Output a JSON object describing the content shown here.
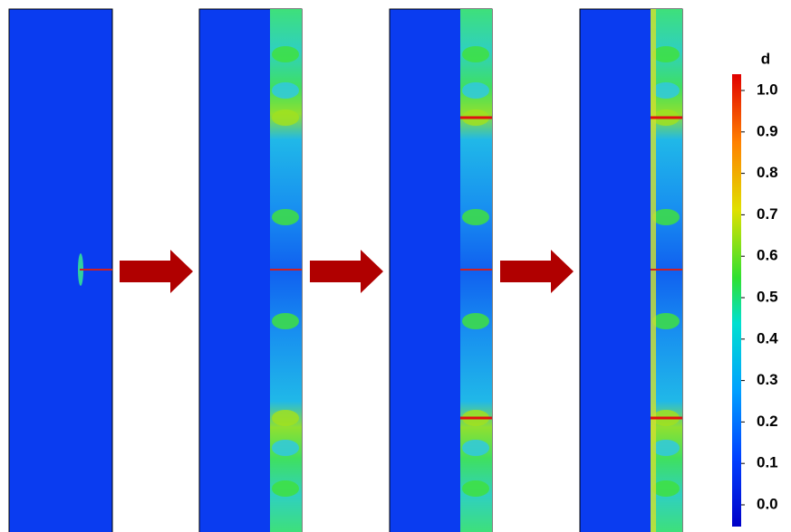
{
  "colorbar": {
    "label": "d",
    "ticks": [
      {
        "value": 0.0,
        "label": "0.0"
      },
      {
        "value": 0.1,
        "label": "0.1"
      },
      {
        "value": 0.2,
        "label": "0.2"
      },
      {
        "value": 0.3,
        "label": "0.3"
      },
      {
        "value": 0.4,
        "label": "0.4"
      },
      {
        "value": 0.5,
        "label": "0.5"
      },
      {
        "value": 0.6,
        "label": "0.6"
      },
      {
        "value": 0.7,
        "label": "0.7"
      },
      {
        "value": 0.8,
        "label": "0.8"
      },
      {
        "value": 0.9,
        "label": "0.9"
      },
      {
        "value": 1.0,
        "label": "1.0"
      }
    ]
  }
}
